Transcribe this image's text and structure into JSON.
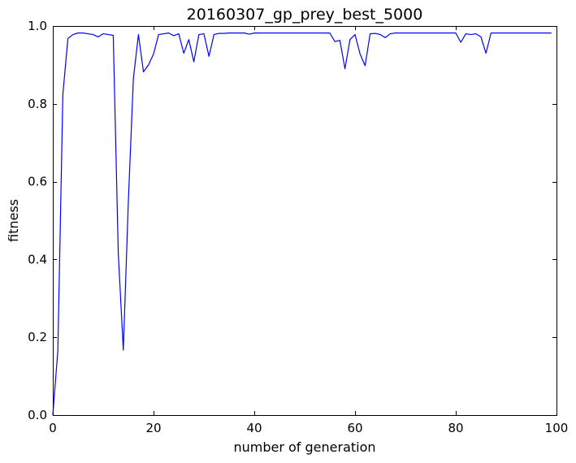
{
  "chart_data": {
    "type": "line",
    "title": "20160307_gp_prey_best_5000",
    "xlabel": "number of generation",
    "ylabel": "fitness",
    "xlim": [
      0,
      100
    ],
    "ylim": [
      0.0,
      1.0
    ],
    "xticks": [
      0,
      20,
      40,
      60,
      80,
      100
    ],
    "xtick_labels": [
      "0",
      "20",
      "40",
      "60",
      "80",
      "100"
    ],
    "yticks": [
      0.0,
      0.2,
      0.4,
      0.6,
      0.8,
      1.0
    ],
    "ytick_labels": [
      "0.0",
      "0.2",
      "0.4",
      "0.6",
      "0.8",
      "1.0"
    ],
    "grid": false,
    "line_color": "#0000ff",
    "series": [
      {
        "x": [
          0,
          1,
          2,
          3,
          4,
          5,
          6,
          7,
          8,
          9,
          10,
          11,
          12,
          13,
          14,
          15,
          16,
          17,
          18,
          19,
          20,
          21,
          22,
          23,
          24,
          25,
          26,
          27,
          28,
          29,
          30,
          31,
          32,
          33,
          34,
          35,
          36,
          37,
          38,
          39,
          40,
          41,
          42,
          43,
          44,
          45,
          46,
          47,
          48,
          49,
          50,
          51,
          52,
          53,
          54,
          55,
          56,
          57,
          58,
          59,
          60,
          61,
          62,
          63,
          64,
          65,
          66,
          67,
          68,
          69,
          70,
          71,
          72,
          73,
          74,
          75,
          76,
          77,
          78,
          79,
          80,
          81,
          82,
          83,
          84,
          85,
          86,
          87,
          88,
          89,
          90,
          91,
          92,
          93,
          94,
          95,
          96,
          97,
          98,
          99
        ],
        "y": [
          0.0,
          0.165,
          0.825,
          0.968,
          0.978,
          0.982,
          0.982,
          0.98,
          0.978,
          0.972,
          0.98,
          0.978,
          0.976,
          0.415,
          0.167,
          0.55,
          0.865,
          0.978,
          0.882,
          0.9,
          0.928,
          0.978,
          0.98,
          0.982,
          0.975,
          0.98,
          0.93,
          0.965,
          0.908,
          0.978,
          0.98,
          0.922,
          0.978,
          0.981,
          0.981,
          0.982,
          0.982,
          0.982,
          0.982,
          0.979,
          0.982,
          0.982,
          0.982,
          0.982,
          0.982,
          0.982,
          0.982,
          0.982,
          0.982,
          0.982,
          0.982,
          0.982,
          0.982,
          0.982,
          0.982,
          0.982,
          0.96,
          0.963,
          0.89,
          0.965,
          0.978,
          0.928,
          0.898,
          0.98,
          0.981,
          0.978,
          0.97,
          0.98,
          0.982,
          0.982,
          0.982,
          0.982,
          0.982,
          0.982,
          0.982,
          0.982,
          0.982,
          0.982,
          0.982,
          0.982,
          0.982,
          0.958,
          0.98,
          0.978,
          0.98,
          0.972,
          0.93,
          0.982,
          0.982,
          0.982,
          0.982,
          0.982,
          0.982,
          0.982,
          0.982,
          0.982,
          0.982,
          0.982,
          0.982,
          0.982
        ]
      }
    ]
  }
}
